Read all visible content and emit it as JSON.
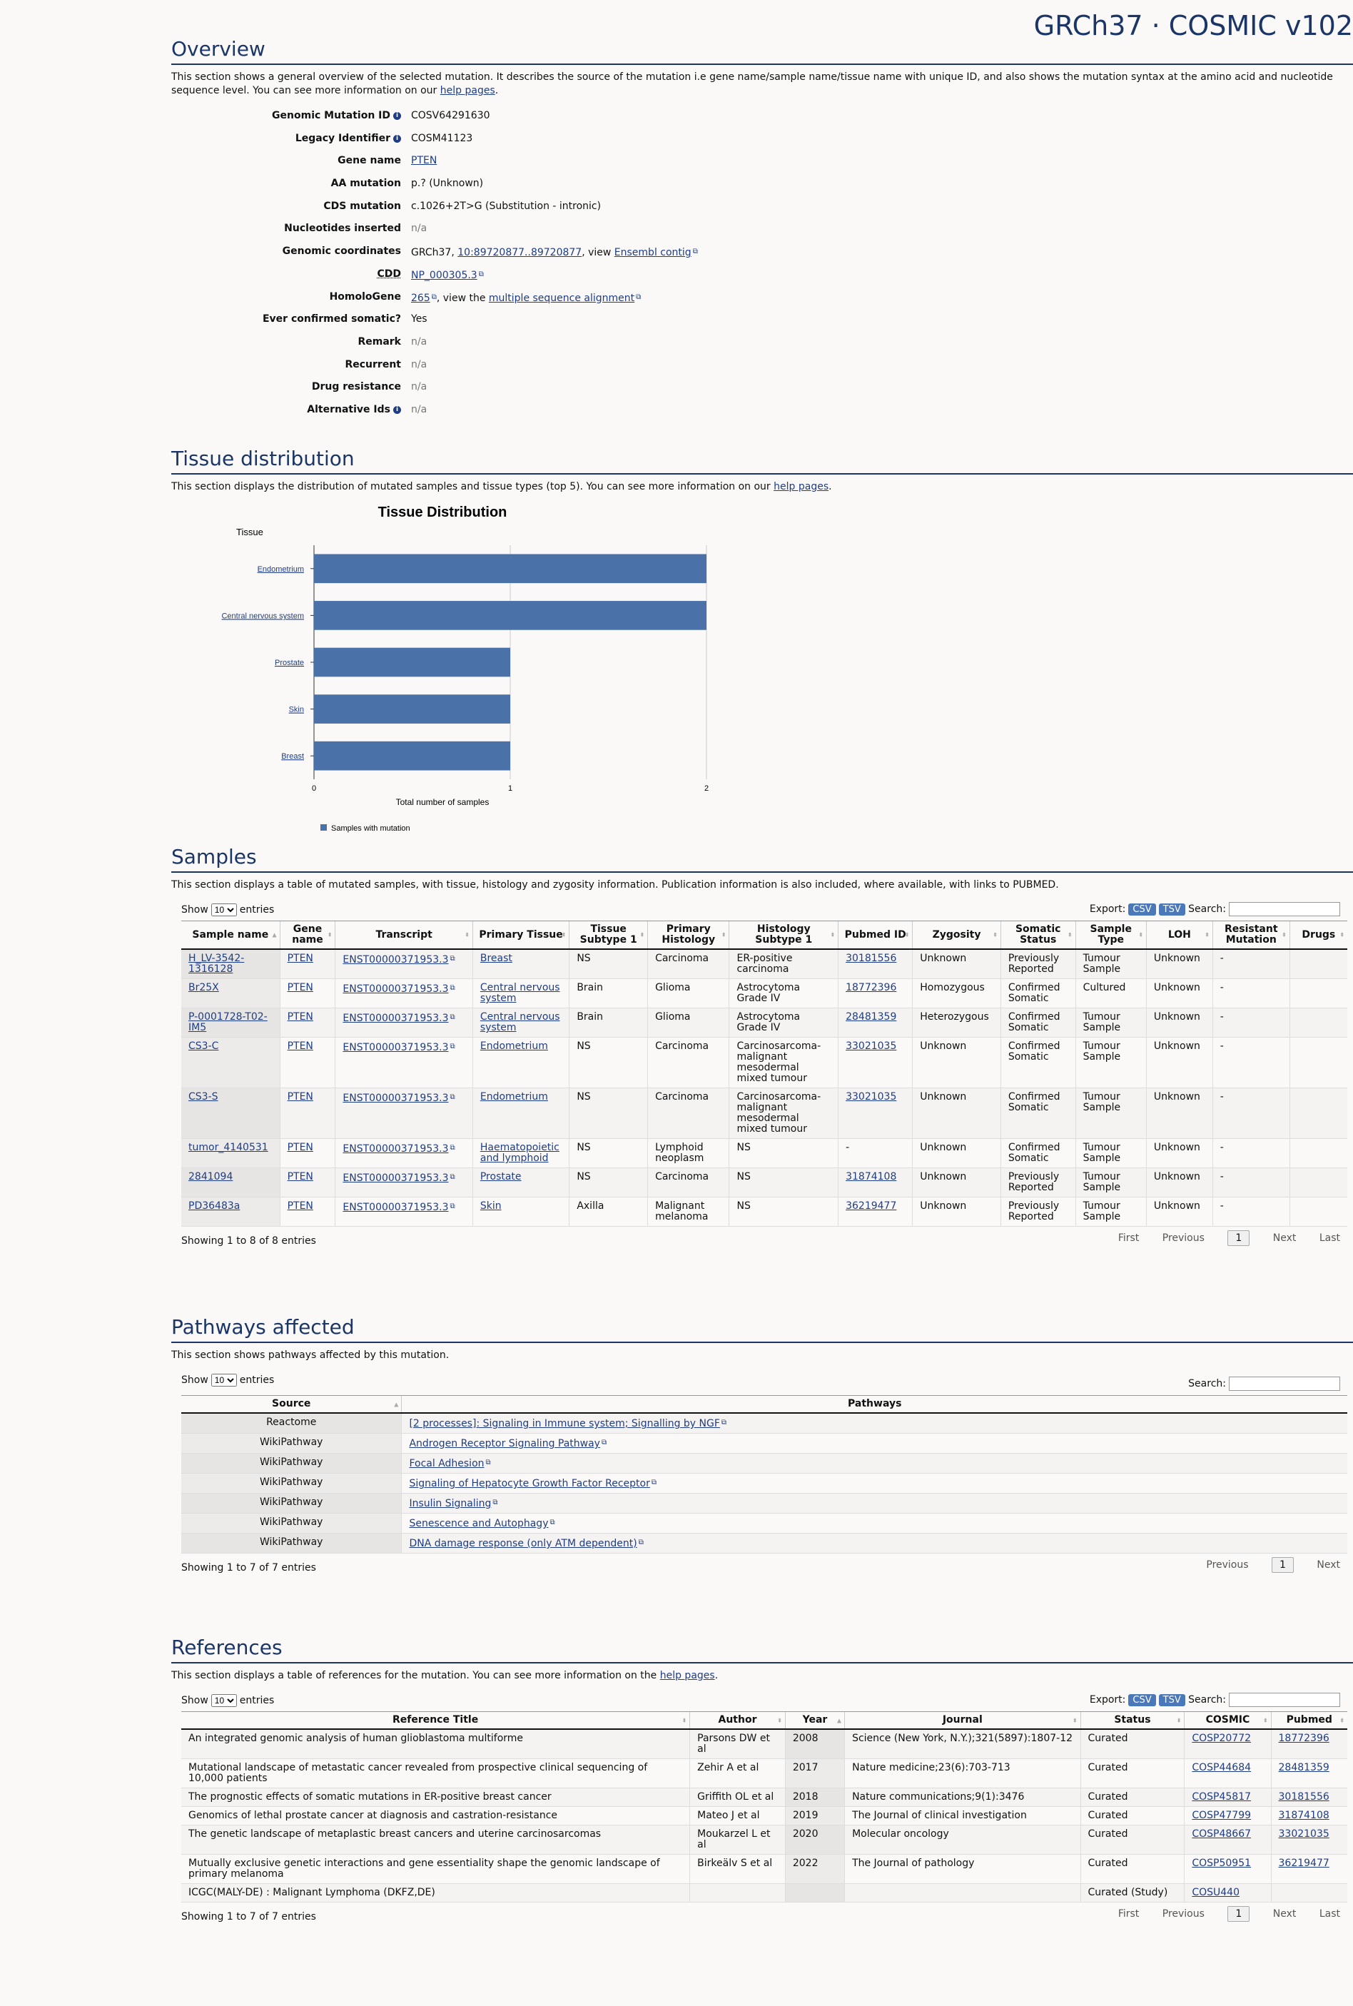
{
  "brand": "GRCh37 · COSMIC v102",
  "overview": {
    "title": "Overview",
    "intro_pre": "This section shows a general overview of the selected mutation. It describes the source of the mutation i.e gene name/sample name/tissue name with unique ID, and also shows the mutation syntax at the amino acid and nucleotide sequence level. You can see more information on our ",
    "help_link": "help pages",
    "intro_post": ".",
    "genomic_mutation_id_label": "Genomic Mutation ID",
    "genomic_mutation_id": "COSV64291630",
    "legacy_id_label": "Legacy Identifier",
    "legacy_id": "COSM41123",
    "gene_name_label": "Gene name",
    "gene_name": "PTEN",
    "aa_mutation_label": "AA mutation",
    "aa_mutation": "p.? (Unknown)",
    "cds_mutation_label": "CDS mutation",
    "cds_mutation": "c.1026+2T>G (Substitution - intronic)",
    "nucleotides_inserted_label": "Nucleotides inserted",
    "nucleotides_inserted": "n/a",
    "genomic_coordinates_label": "Genomic coordinates",
    "coords_prefix": "GRCh37, ",
    "coords_link": "10:89720877..89720877",
    "coords_mid": ", view ",
    "ensembl_link": "Ensembl contig",
    "cdd_label": "CDD",
    "cdd_link": "NP_000305.3",
    "homologene_label": "HomoloGene",
    "homologene_link": "265",
    "homologene_mid": ", view the ",
    "msa_link": "multiple sequence alignment",
    "ever_confirmed_label": "Ever confirmed somatic?",
    "ever_confirmed": "Yes",
    "remark_label": "Remark",
    "remark": "n/a",
    "recurrent_label": "Recurrent",
    "recurrent": "n/a",
    "drug_resistance_label": "Drug resistance",
    "drug_resistance": "n/a",
    "alternative_ids_label": "Alternative Ids",
    "alternative_ids": "n/a"
  },
  "tissue": {
    "title": "Tissue distribution",
    "intro_pre": "This section displays the distribution of mutated samples and tissue types (top 5). You can see more information on our ",
    "help_link": "help pages",
    "intro_post": "."
  },
  "chart_data": {
    "type": "bar",
    "orientation": "horizontal",
    "title": "Tissue Distribution",
    "ylabel": "Tissue",
    "xlabel": "Total number of samples",
    "categories": [
      "Endometrium",
      "Central nervous system",
      "Prostate",
      "Skin",
      "Breast"
    ],
    "values": [
      2,
      2,
      1,
      1,
      1
    ],
    "xlim": [
      0,
      2
    ],
    "xticks": [
      "0",
      "1",
      "2"
    ],
    "legend": "Samples with mutation",
    "legend_position": "bottom-left",
    "color": "#4a72a8"
  },
  "samples": {
    "title": "Samples",
    "intro": "This section displays a table of mutated samples, with tissue, histology and zygosity information. Publication information is also included, where available, with links to PUBMED.",
    "show": "Show",
    "entries": "entries",
    "page_size": "10",
    "export": "Export:",
    "csv": "CSV",
    "tsv": "TSV",
    "search": "Search:",
    "headers": [
      "Sample name",
      "Gene name",
      "Transcript",
      "Primary Tissue",
      "Tissue Subtype 1",
      "Primary Histology",
      "Histology Subtype 1",
      "Pubmed ID",
      "Zygosity",
      "Somatic Status",
      "Sample Type",
      "LOH",
      "Resistant Mutation",
      "Drugs"
    ],
    "rows": [
      [
        "H_LV-3542-1316128",
        "PTEN",
        "ENST00000371953.3",
        "Breast",
        "NS",
        "Carcinoma",
        "ER-positive carcinoma",
        "30181556",
        "Unknown",
        "Previously Reported",
        "Tumour Sample",
        "Unknown",
        "-",
        ""
      ],
      [
        "Br25X",
        "PTEN",
        "ENST00000371953.3",
        "Central nervous system",
        "Brain",
        "Glioma",
        "Astrocytoma Grade IV",
        "18772396",
        "Homozygous",
        "Confirmed Somatic",
        "Cultured",
        "Unknown",
        "-",
        ""
      ],
      [
        "P-0001728-T02-IM5",
        "PTEN",
        "ENST00000371953.3",
        "Central nervous system",
        "Brain",
        "Glioma",
        "Astrocytoma Grade IV",
        "28481359",
        "Heterozygous",
        "Confirmed Somatic",
        "Tumour Sample",
        "Unknown",
        "-",
        ""
      ],
      [
        "CS3-C",
        "PTEN",
        "ENST00000371953.3",
        "Endometrium",
        "NS",
        "Carcinoma",
        "Carcinosarcoma-malignant mesodermal mixed tumour",
        "33021035",
        "Unknown",
        "Confirmed Somatic",
        "Tumour Sample",
        "Unknown",
        "-",
        ""
      ],
      [
        "CS3-S",
        "PTEN",
        "ENST00000371953.3",
        "Endometrium",
        "NS",
        "Carcinoma",
        "Carcinosarcoma-malignant mesodermal mixed tumour",
        "33021035",
        "Unknown",
        "Confirmed Somatic",
        "Tumour Sample",
        "Unknown",
        "-",
        ""
      ],
      [
        "tumor_4140531",
        "PTEN",
        "ENST00000371953.3",
        "Haematopoietic and lymphoid",
        "NS",
        "Lymphoid neoplasm",
        "NS",
        "-",
        "Unknown",
        "Confirmed Somatic",
        "Tumour Sample",
        "Unknown",
        "-",
        ""
      ],
      [
        "2841094",
        "PTEN",
        "ENST00000371953.3",
        "Prostate",
        "NS",
        "Carcinoma",
        "NS",
        "31874108",
        "Unknown",
        "Previously Reported",
        "Tumour Sample",
        "Unknown",
        "-",
        ""
      ],
      [
        "PD36483a",
        "PTEN",
        "ENST00000371953.3",
        "Skin",
        "Axilla",
        "Malignant melanoma",
        "NS",
        "36219477",
        "Unknown",
        "Previously Reported",
        "Tumour Sample",
        "Unknown",
        "-",
        ""
      ]
    ],
    "info": "Showing 1 to 8 of 8 entries",
    "first": "First",
    "previous": "Previous",
    "page": "1",
    "next": "Next",
    "last": "Last"
  },
  "pathways": {
    "title": "Pathways affected",
    "intro": "This section shows pathways affected by this mutation.",
    "show": "Show",
    "entries": "entries",
    "page_size": "10",
    "search": "Search:",
    "headers": [
      "Source",
      "Pathways"
    ],
    "rows": [
      [
        "Reactome",
        "[2 processes]: Signaling in Immune system; Signalling by NGF"
      ],
      [
        "WikiPathway",
        "Androgen Receptor Signaling Pathway"
      ],
      [
        "WikiPathway",
        "Focal Adhesion"
      ],
      [
        "WikiPathway",
        "Signaling of Hepatocyte Growth Factor Receptor"
      ],
      [
        "WikiPathway",
        "Insulin Signaling"
      ],
      [
        "WikiPathway",
        "Senescence and Autophagy"
      ],
      [
        "WikiPathway",
        "DNA damage response (only ATM dependent)"
      ]
    ],
    "info": "Showing 1 to 7 of 7 entries",
    "previous": "Previous",
    "page": "1",
    "next": "Next"
  },
  "references": {
    "title": "References",
    "intro_pre": "This section displays a table of references for the mutation. You can see more information on the ",
    "help_link": "help pages",
    "intro_post": ".",
    "show": "Show",
    "entries": "entries",
    "page_size": "10",
    "export": "Export:",
    "csv": "CSV",
    "tsv": "TSV",
    "search": "Search:",
    "headers": [
      "Reference Title",
      "Author",
      "Year",
      "Journal",
      "Status",
      "COSMIC",
      "Pubmed"
    ],
    "rows": [
      [
        "An integrated genomic analysis of human glioblastoma multiforme",
        "Parsons DW et al",
        "2008",
        "Science (New York, N.Y.);321(5897):1807-12",
        "Curated",
        "COSP20772",
        "18772396"
      ],
      [
        "Mutational landscape of metastatic cancer revealed from prospective clinical sequencing of 10,000 patients",
        "Zehir A et al",
        "2017",
        "Nature medicine;23(6):703-713",
        "Curated",
        "COSP44684",
        "28481359"
      ],
      [
        "The prognostic effects of somatic mutations in ER-positive breast cancer",
        "Griffith OL et al",
        "2018",
        "Nature communications;9(1):3476",
        "Curated",
        "COSP45817",
        "30181556"
      ],
      [
        "Genomics of lethal prostate cancer at diagnosis and castration-resistance",
        "Mateo J et al",
        "2019",
        "The Journal of clinical investigation",
        "Curated",
        "COSP47799",
        "31874108"
      ],
      [
        "The genetic landscape of metaplastic breast cancers and uterine carcinosarcomas",
        "Moukarzel L et al",
        "2020",
        "Molecular oncology",
        "Curated",
        "COSP48667",
        "33021035"
      ],
      [
        "Mutually exclusive genetic interactions and gene essentiality shape the genomic landscape of primary melanoma",
        "Birkeälv S et al",
        "2022",
        "The Journal of pathology",
        "Curated",
        "COSP50951",
        "36219477"
      ],
      [
        "ICGC(MALY-DE) : Malignant Lymphoma (DKFZ,DE)",
        "",
        "",
        "",
        "Curated (Study)",
        "COSU440",
        ""
      ]
    ],
    "info": "Showing 1 to 7 of 7 entries",
    "first": "First",
    "previous": "Previous",
    "page": "1",
    "next": "Next",
    "last": "Last"
  }
}
